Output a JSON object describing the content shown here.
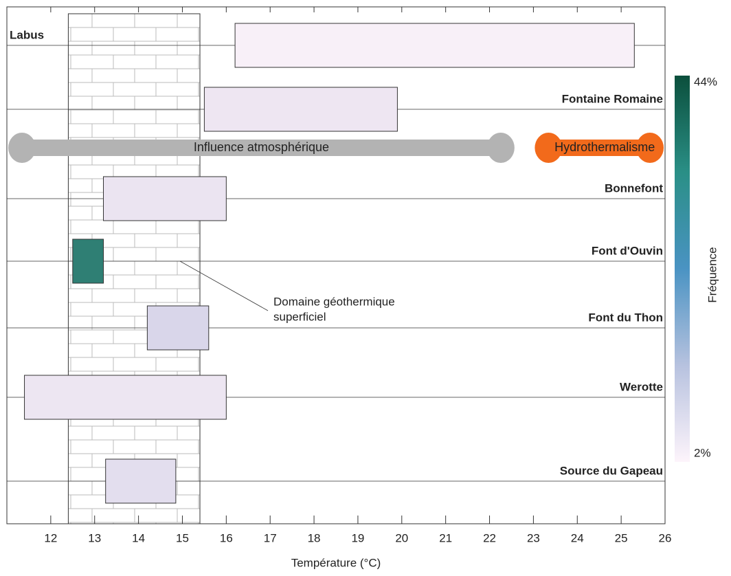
{
  "chart_data": {
    "type": "range",
    "x_label": "Température (°C)",
    "xlim": [
      11,
      26
    ],
    "xticks": [
      12,
      13,
      14,
      15,
      16,
      17,
      18,
      19,
      20,
      21,
      22,
      23,
      24,
      25,
      26
    ],
    "series": [
      {
        "name": "Labus",
        "values": [
          16.2,
          25.3
        ],
        "color": "#f8f0f8",
        "label_side": "left"
      },
      {
        "name": "Fontaine Romaine",
        "values": [
          15.5,
          19.9
        ],
        "color": "#eee6f2",
        "label_side": "right"
      },
      {
        "name": "Bonnefont",
        "values": [
          13.2,
          16.0
        ],
        "color": "#ebe4f1",
        "label_side": "right"
      },
      {
        "name": "Font d'Ouvin",
        "values": [
          12.5,
          13.2
        ],
        "color": "#2f7f74",
        "label_side": "right"
      },
      {
        "name": "Font du Thon",
        "values": [
          14.2,
          15.6
        ],
        "color": "#d9d6ea",
        "label_side": "right"
      },
      {
        "name": "Werotte",
        "values": [
          11.4,
          16.0
        ],
        "color": "#ede6f2",
        "label_side": "right"
      },
      {
        "name": "Source du Gapeau",
        "values": [
          13.25,
          14.85
        ],
        "color": "#e3deee",
        "label_side": "right"
      }
    ],
    "domain": {
      "label": [
        "Domaine géothermique",
        "superficiel"
      ],
      "values": [
        12.4,
        15.4
      ]
    },
    "bands": [
      {
        "label": "Influence atmosphérique",
        "values": [
          11,
          22.6
        ],
        "color": "#b3b3b3"
      },
      {
        "label": "Hydrothermalisme",
        "values": [
          23,
          26
        ],
        "color": "#f26a1b"
      }
    ],
    "colorbar": {
      "label": "Fréquence",
      "ticks": [
        {
          "value": 44,
          "label": "44%"
        },
        {
          "value": 2,
          "label": "2%"
        }
      ],
      "colors": [
        "#0b4f3c",
        "#2a8f86",
        "#4a93c3",
        "#b7c2df",
        "#fdf4fb"
      ]
    }
  }
}
